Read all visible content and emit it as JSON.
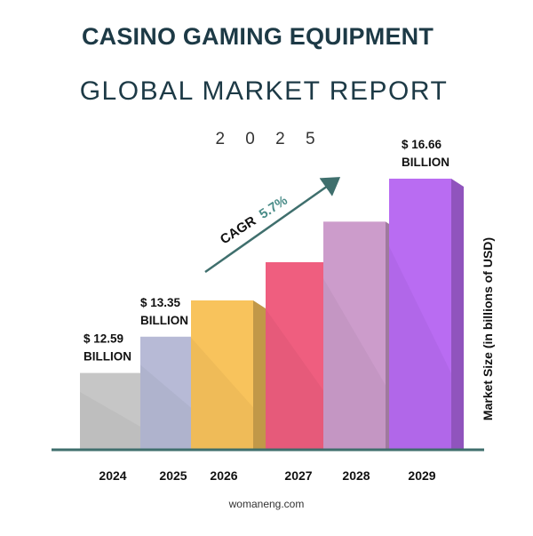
{
  "header": {
    "title": "CASINO GAMING EQUIPMENT",
    "subtitle": "GLOBAL MARKET REPORT",
    "year": "2 0 2 5"
  },
  "footer": {
    "source": "womaneng.com"
  },
  "cagr": {
    "label": "CAGR",
    "value": "5.7%"
  },
  "colors": {
    "axis": "#3f6f6d",
    "text": "#1d3a46",
    "cagr_value": "#4a8c88",
    "bars": [
      "#c6c6c6",
      "#b7bad6",
      "#f8c35c",
      "#ef5e7f",
      "#cc9ccb",
      "#b96cf2"
    ]
  },
  "chart_data": {
    "type": "bar",
    "categories": [
      "2024",
      "2025",
      "2026",
      "2027",
      "2028",
      "2029"
    ],
    "values": [
      12.59,
      13.35,
      14.11,
      14.91,
      15.76,
      16.66
    ],
    "ylabel": "Market Size (in billions of USD)",
    "value_labels": [
      {
        "index": 0,
        "amount": "$ 12.59",
        "unit": "BILLION"
      },
      {
        "index": 1,
        "amount": "$ 13.35",
        "unit": "BILLION"
      },
      {
        "index": 5,
        "amount": "$ 16.66",
        "unit": "BILLION"
      }
    ],
    "ylim": [
      11.0,
      17.0
    ],
    "grid": false,
    "legend": "none"
  }
}
